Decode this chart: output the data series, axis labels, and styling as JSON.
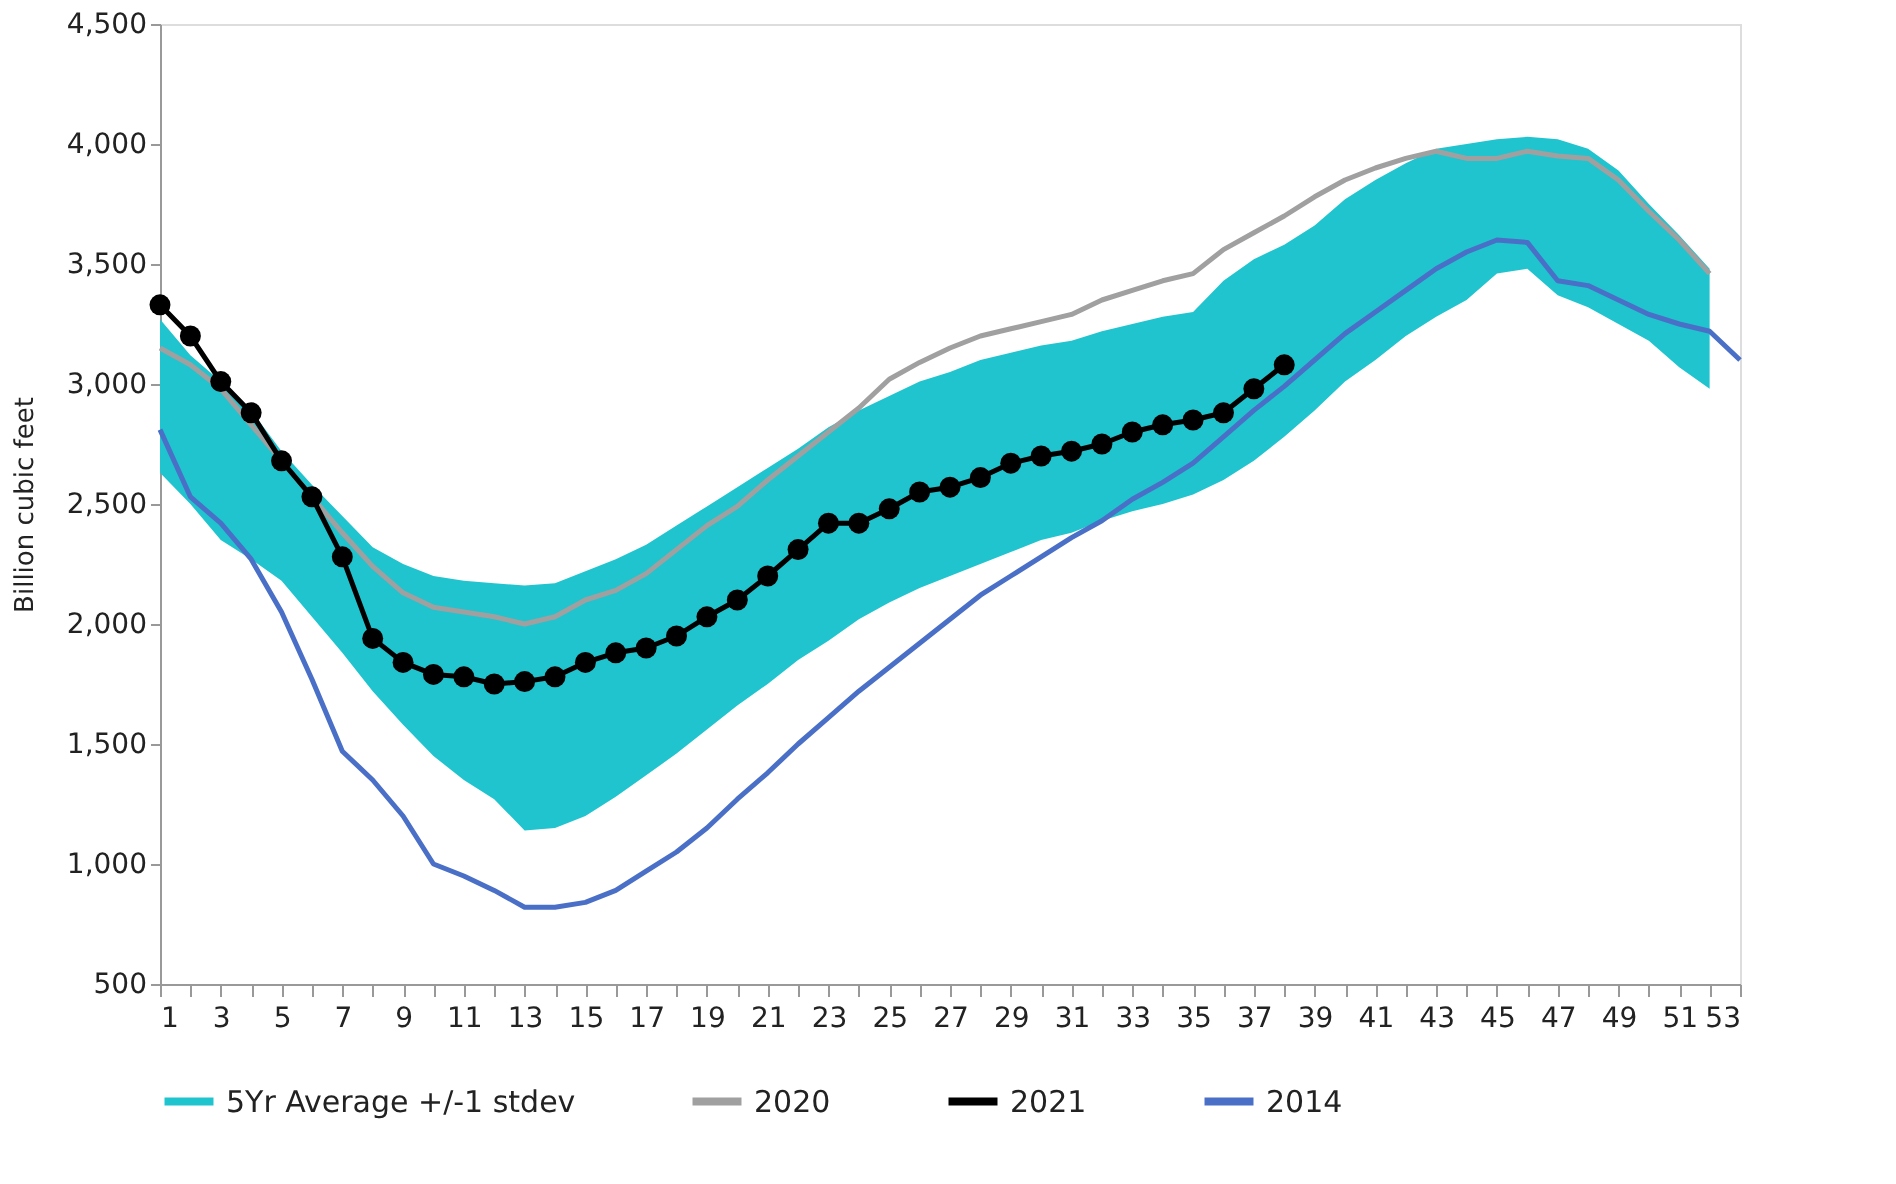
{
  "chart_data": {
    "type": "line",
    "ylabel": "Billion cubic feet",
    "x": [
      1,
      2,
      3,
      4,
      5,
      6,
      7,
      8,
      9,
      10,
      11,
      12,
      13,
      14,
      15,
      16,
      17,
      18,
      19,
      20,
      21,
      22,
      23,
      24,
      25,
      26,
      27,
      28,
      29,
      30,
      31,
      32,
      33,
      34,
      35,
      36,
      37,
      38,
      39,
      40,
      41,
      42,
      43,
      44,
      45,
      46,
      47,
      48,
      49,
      50,
      51,
      52,
      53
    ],
    "xlim": [
      1,
      53
    ],
    "xticks": [
      1,
      {
        "value": 2,
        "label": null
      },
      3,
      {
        "value": 4,
        "label": null
      },
      5,
      {
        "value": 6,
        "label": null
      },
      7,
      {
        "value": 8,
        "label": null
      },
      9,
      {
        "value": 10,
        "label": null
      },
      11,
      {
        "value": 12,
        "label": null
      },
      13,
      {
        "value": 14,
        "label": null
      },
      15,
      {
        "value": 16,
        "label": null
      },
      17,
      {
        "value": 18,
        "label": null
      },
      19,
      {
        "value": 20,
        "label": null
      },
      21,
      {
        "value": 22,
        "label": null
      },
      23,
      {
        "value": 24,
        "label": null
      },
      25,
      {
        "value": 26,
        "label": null
      },
      27,
      {
        "value": 28,
        "label": null
      },
      29,
      {
        "value": 30,
        "label": null
      },
      31,
      {
        "value": 32,
        "label": null
      },
      33,
      {
        "value": 34,
        "label": null
      },
      35,
      {
        "value": 36,
        "label": null
      },
      37,
      {
        "value": 38,
        "label": null
      },
      39,
      {
        "value": 40,
        "label": null
      },
      41,
      {
        "value": 42,
        "label": null
      },
      43,
      {
        "value": 44,
        "label": null
      },
      45,
      {
        "value": 46,
        "label": null
      },
      47,
      {
        "value": 48,
        "label": null
      },
      49,
      {
        "value": 50,
        "label": null
      },
      51,
      {
        "value": 52,
        "label": null
      },
      53
    ],
    "ylim": [
      500,
      4500
    ],
    "yticks": [
      {
        "value": 500,
        "label": "500"
      },
      {
        "value": 1000,
        "label": "1,000"
      },
      {
        "value": 1500,
        "label": "1,500"
      },
      {
        "value": 2000,
        "label": "2,000"
      },
      {
        "value": 2500,
        "label": "2,500"
      },
      {
        "value": 3000,
        "label": "3,000"
      },
      {
        "value": 3500,
        "label": "3,500"
      },
      {
        "value": 4000,
        "label": "4,000"
      },
      {
        "value": 4500,
        "label": "4,500"
      }
    ],
    "grid": false,
    "legend": "bottom",
    "series": [
      {
        "name": "5Yr Average +/-1 stdev",
        "type": "area",
        "color": "#1fc4ce",
        "x": [
          1,
          2,
          3,
          4,
          5,
          6,
          7,
          8,
          9,
          10,
          11,
          12,
          13,
          14,
          15,
          16,
          17,
          18,
          19,
          20,
          21,
          22,
          23,
          24,
          25,
          26,
          27,
          28,
          29,
          30,
          31,
          32,
          33,
          34,
          35,
          36,
          37,
          38,
          39,
          40,
          41,
          42,
          43,
          44,
          45,
          46,
          47,
          48,
          49,
          50,
          51,
          52
        ],
        "values": [
          null,
          null,
          null,
          null,
          null,
          null,
          null,
          null,
          null,
          null,
          null,
          null,
          null,
          null,
          null,
          null,
          null,
          null,
          null,
          null,
          null,
          null,
          null,
          null,
          null,
          null,
          null,
          null,
          null,
          null,
          null,
          null,
          null,
          null,
          null,
          null,
          null,
          null,
          null,
          null,
          null,
          null,
          null,
          null,
          null,
          null,
          null,
          null,
          null,
          null,
          null,
          null
        ],
        "lower": [
          2630,
          2500,
          2350,
          2270,
          2180,
          2030,
          1880,
          1720,
          1580,
          1450,
          1350,
          1270,
          1140,
          1150,
          1200,
          1280,
          1370,
          1460,
          1560,
          1660,
          1750,
          1850,
          1930,
          2020,
          2090,
          2150,
          2200,
          2250,
          2300,
          2350,
          2380,
          2430,
          2470,
          2500,
          2540,
          2600,
          2680,
          2780,
          2890,
          3010,
          3100,
          3200,
          3280,
          3350,
          3460,
          3480,
          3370,
          3320,
          3250,
          3180,
          3070,
          2980
        ],
        "upper": [
          3270,
          3120,
          3010,
          2890,
          2720,
          2580,
          2450,
          2320,
          2250,
          2200,
          2180,
          2170,
          2160,
          2170,
          2220,
          2270,
          2330,
          2410,
          2490,
          2570,
          2650,
          2730,
          2820,
          2890,
          2950,
          3010,
          3050,
          3100,
          3130,
          3160,
          3180,
          3220,
          3250,
          3280,
          3300,
          3430,
          3520,
          3580,
          3660,
          3770,
          3850,
          3920,
          3980,
          4000,
          4020,
          4030,
          4020,
          3980,
          3890,
          3750,
          3620,
          3480
        ]
      },
      {
        "name": "2020",
        "type": "line",
        "color": "#a0a0a0",
        "marker": "none",
        "x": [
          1,
          2,
          3,
          4,
          5,
          6,
          7,
          8,
          9,
          10,
          11,
          12,
          13,
          14,
          15,
          16,
          17,
          18,
          19,
          20,
          21,
          22,
          23,
          24,
          25,
          26,
          27,
          28,
          29,
          30,
          31,
          32,
          33,
          34,
          35,
          36,
          37,
          38,
          39,
          40,
          41,
          42,
          43,
          44,
          45,
          46,
          47,
          48,
          49,
          50,
          51,
          52
        ],
        "values": [
          3150,
          3080,
          2980,
          2830,
          2680,
          2530,
          2380,
          2240,
          2130,
          2070,
          2050,
          2030,
          2000,
          2030,
          2100,
          2140,
          2210,
          2310,
          2410,
          2490,
          2600,
          2700,
          2800,
          2900,
          3020,
          3090,
          3150,
          3200,
          3230,
          3260,
          3290,
          3350,
          3390,
          3430,
          3460,
          3560,
          3630,
          3700,
          3780,
          3850,
          3900,
          3940,
          3970,
          3940,
          3940,
          3970,
          3950,
          3940,
          3850,
          3720,
          3600,
          3460
        ]
      },
      {
        "name": "2021",
        "type": "line",
        "color": "#000000",
        "marker": "circle",
        "x": [
          1,
          2,
          3,
          4,
          5,
          6,
          7,
          8,
          9,
          10,
          11,
          12,
          13,
          14,
          15,
          16,
          17,
          18,
          19,
          20,
          21,
          22,
          23,
          24,
          25,
          26,
          27,
          28,
          29,
          30,
          31,
          32,
          33,
          34,
          35,
          36,
          37,
          38
        ],
        "values": [
          3330,
          3200,
          3010,
          2880,
          2680,
          2530,
          2280,
          1940,
          1840,
          1790,
          1780,
          1750,
          1760,
          1780,
          1840,
          1880,
          1900,
          1950,
          2030,
          2100,
          2200,
          2310,
          2420,
          2420,
          2480,
          2550,
          2570,
          2610,
          2670,
          2700,
          2720,
          2750,
          2800,
          2830,
          2850,
          2880,
          2980,
          3080
        ]
      },
      {
        "name": "2014",
        "type": "line",
        "color": "#4a6fc7",
        "marker": "none",
        "values": [
          2810,
          2530,
          2420,
          2270,
          2050,
          1770,
          1470,
          1350,
          1200,
          1000,
          950,
          890,
          820,
          820,
          840,
          890,
          970,
          1050,
          1150,
          1270,
          1380,
          1500,
          1610,
          1720,
          1820,
          1920,
          2020,
          2120,
          2200,
          2280,
          2360,
          2430,
          2520,
          2590,
          2670,
          2780,
          2890,
          2990,
          3100,
          3210,
          3300,
          3390,
          3480,
          3550,
          3600,
          3590,
          3430,
          3410,
          3350,
          3290,
          3250,
          3220,
          3100
        ]
      }
    ]
  }
}
